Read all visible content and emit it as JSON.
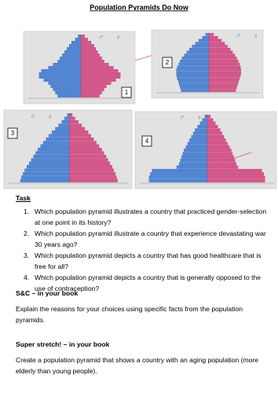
{
  "header": {
    "title": "Population Pyramids Do Now"
  },
  "symbols": {
    "male": "♂",
    "female": "♀"
  },
  "pyramids": [
    {
      "number": "1",
      "xlim": [
        0,
        10
      ],
      "male": [
        5,
        5.5,
        6,
        6.5,
        7,
        8,
        9,
        9,
        8.5,
        7,
        6,
        5,
        4.5,
        4,
        3.5,
        3,
        2.5,
        2,
        1.2,
        0.6
      ],
      "female": [
        4,
        4.5,
        5,
        5.5,
        6.5,
        7.5,
        8.5,
        8.5,
        8,
        7,
        6,
        5,
        4.5,
        4,
        3.6,
        3.2,
        2.8,
        2.2,
        1.5,
        0.8
      ]
    },
    {
      "number": "2",
      "xlim": [
        0,
        10
      ],
      "male": [
        6,
        6.2,
        6.4,
        6.6,
        6.8,
        7,
        7,
        7,
        6.8,
        6.5,
        6.2,
        5.8,
        5.3,
        4.8,
        4.2,
        3.6,
        2.9,
        2.2,
        1.4,
        0.7
      ],
      "female": [
        5.8,
        6,
        6.2,
        6.4,
        6.6,
        6.8,
        6.9,
        6.9,
        6.8,
        6.6,
        6.3,
        6,
        5.6,
        5.1,
        4.6,
        4,
        3.4,
        2.7,
        1.9,
        1
      ]
    },
    {
      "number": "3",
      "xlim": [
        0,
        10
      ],
      "male": [
        9,
        8.8,
        8.5,
        8.2,
        7.8,
        7.4,
        7,
        6.6,
        6.2,
        5.8,
        5.3,
        4.8,
        4.3,
        3.8,
        3.2,
        2.6,
        2,
        1.4,
        0.9,
        0.4
      ],
      "female": [
        8.8,
        8.6,
        8.4,
        8.1,
        7.8,
        7.4,
        7,
        6.7,
        6.3,
        5.9,
        5.4,
        4.9,
        4.4,
        3.9,
        3.4,
        2.8,
        2.2,
        1.6,
        1,
        0.5
      ]
    },
    {
      "number": "4",
      "xlim": [
        0,
        10
      ],
      "male": [
        9.5,
        9.5,
        9.3,
        9,
        5,
        4.6,
        4.4,
        4.2,
        4,
        3.8,
        3.5,
        3.2,
        2.9,
        2.6,
        2.3,
        2,
        1.6,
        1.2,
        0.8,
        0.4
      ],
      "female": [
        9.4,
        9.4,
        9.2,
        8.9,
        5,
        4.7,
        4.5,
        4.3,
        4.1,
        3.9,
        3.6,
        3.3,
        3,
        2.7,
        2.4,
        2.1,
        1.7,
        1.3,
        0.9,
        0.5
      ]
    }
  ],
  "task": {
    "heading": "Task",
    "items": [
      {
        "marker": "1.",
        "text": "Which population pyramid illustrates a country that practiced gender-selection at one point in its history?"
      },
      {
        "marker": "2.",
        "text": "Which population pyramid illustrate a country that experience devastating war 30 years ago?"
      },
      {
        "marker": "3.",
        "text": "Which population pyramid depicts a country that has good healthcare that is free for all?"
      },
      {
        "marker": "4.",
        "text": "Which population pyramid depicts a country that is generally opposed to the use of contraception?"
      }
    ]
  },
  "sc": {
    "heading": "S&C – in your book",
    "text": "Explain the reasons for your choices using specific facts from the population pyramids."
  },
  "stretch": {
    "heading": "Super stretch! – in your book",
    "text": "Create  a population pyramid that shows a country with an aging population (more elderly than young people)."
  }
}
